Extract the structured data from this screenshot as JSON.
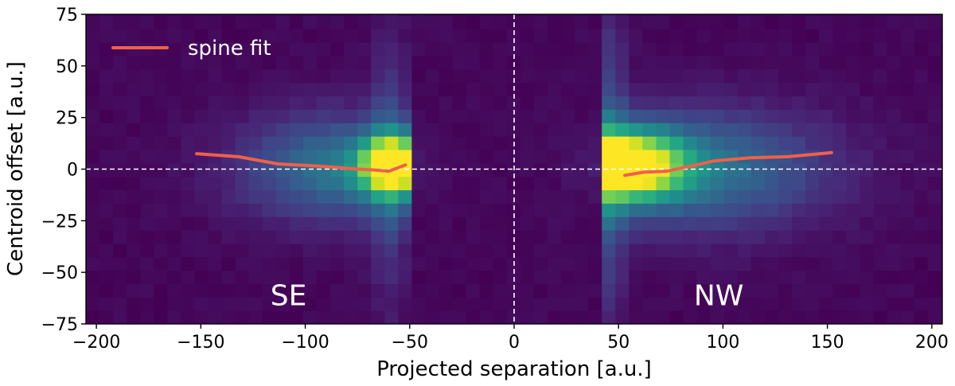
{
  "chart_data": {
    "type": "heatmap",
    "title": "",
    "xlabel": "Projected separation [a.u.]",
    "ylabel": "Centroid offset [a.u.]",
    "xlim": [
      -205,
      205
    ],
    "ylim": [
      -75,
      75
    ],
    "x_ticks": [
      -200,
      -150,
      -100,
      -50,
      0,
      50,
      100,
      150,
      200
    ],
    "x_tick_labels": [
      "−200",
      "−150",
      "−100",
      "−50",
      "0",
      "50",
      "100",
      "150",
      "200"
    ],
    "y_ticks": [
      -75,
      -50,
      -25,
      0,
      25,
      50,
      75
    ],
    "y_tick_labels": [
      "−75",
      "−50",
      "−25",
      "0",
      "25",
      "50",
      "75"
    ],
    "reference_lines": {
      "x": 0,
      "y": 0,
      "style": "dashed",
      "color": "#ffffff"
    },
    "heatmap": {
      "colormap": "viridis",
      "bin_width": 6.5,
      "bin_height": 6.5,
      "background_color": "#440d55",
      "peak_color": "#fde725",
      "inner_gap": [
        -47,
        39
      ],
      "sources": [
        {
          "x": -57,
          "y": 2,
          "sx": 11,
          "sy": 9,
          "amp": 1.05
        },
        {
          "x": -82,
          "y": 1,
          "sx": 34,
          "sy": 18,
          "amp": 0.38
        },
        {
          "x": -60,
          "y": 0,
          "sx": 6,
          "sy": 45,
          "amp": 0.18
        },
        {
          "x": 53,
          "y": 2,
          "sx": 18,
          "sy": 11,
          "amp": 1.05
        },
        {
          "x": 85,
          "y": 0,
          "sx": 45,
          "sy": 20,
          "amp": 0.38
        },
        {
          "x": 45,
          "y": 0,
          "sx": 6,
          "sy": 55,
          "amp": 0.22
        }
      ]
    },
    "series": [
      {
        "name": "spine fit",
        "color": "#f0604a",
        "segments": [
          {
            "x": [
              -152,
              -132,
              -113,
              -94,
              -75,
              -66,
              -60,
              -56,
              -52
            ],
            "y": [
              7.5,
              6,
              2.5,
              1.5,
              0,
              -0.5,
              -1,
              0.5,
              2
            ]
          },
          {
            "x": [
              53,
              62,
              73,
              85,
              96,
              113,
              131,
              152
            ],
            "y": [
              -3,
              -1.5,
              -1,
              1.5,
              4,
              5.5,
              6,
              8
            ]
          }
        ]
      }
    ],
    "legend": {
      "position": "top-left",
      "entries": [
        "spine fit"
      ]
    },
    "annotations": [
      {
        "text": "SE",
        "x": -108,
        "y": -66
      },
      {
        "text": "NW",
        "x": 98,
        "y": -66
      }
    ]
  }
}
